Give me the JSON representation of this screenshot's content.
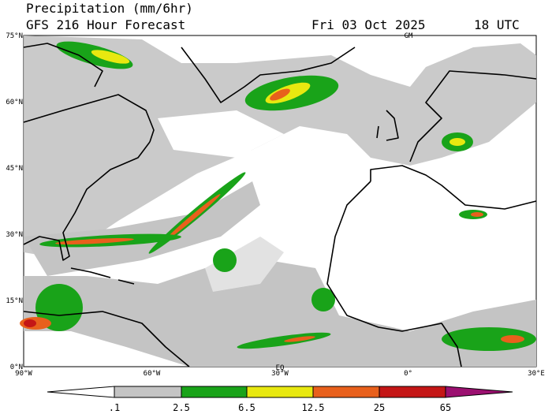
{
  "header": {
    "title": "Precipitation (mm/6hr)",
    "subtitle": "GFS 216 Hour Forecast",
    "date": "Fri 03 Oct 2025",
    "time": "18 UTC"
  },
  "map": {
    "lat_labels": [
      "75°N",
      "60°N",
      "45°N",
      "30°N",
      "15°N",
      "0°N"
    ],
    "lon_labels": [
      "90°W",
      "60°W",
      "30°W",
      "0°",
      "30°E"
    ],
    "markers": [
      "GM",
      "EQ"
    ]
  },
  "colorbar": {
    "labels": [
      ".1",
      "2.5",
      "6.5",
      "12.5",
      "25",
      "65"
    ]
  }
}
